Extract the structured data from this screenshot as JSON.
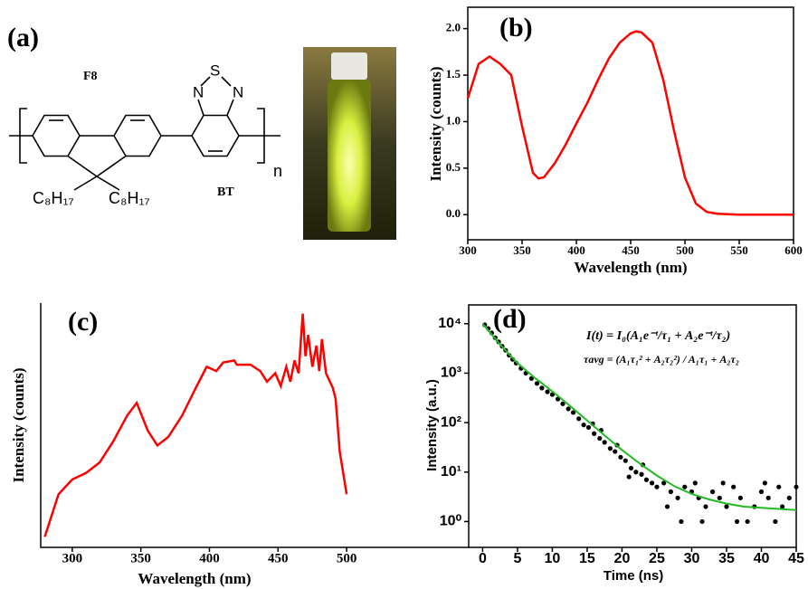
{
  "panel_a": {
    "label": "(a)",
    "f8": "F8",
    "bt": "BT",
    "s": "S",
    "n1": "N",
    "n2": "N",
    "repeat": "n",
    "chain_left": "C₈H₁₇",
    "chain_right": "C₈H₁₇"
  },
  "chart_data": [
    {
      "type": "line",
      "label": "(b)",
      "xlabel": "Wavelength (nm)",
      "ylabel": "Intensity (counts)",
      "color": "#ff0000",
      "x": [
        300,
        310,
        320,
        330,
        340,
        350,
        360,
        365,
        370,
        380,
        390,
        400,
        410,
        420,
        430,
        440,
        450,
        455,
        460,
        470,
        480,
        490,
        500,
        510,
        520,
        530,
        550,
        600
      ],
      "values": [
        1.25,
        1.62,
        1.7,
        1.62,
        1.5,
        0.95,
        0.45,
        0.39,
        0.4,
        0.55,
        0.75,
        0.98,
        1.2,
        1.45,
        1.68,
        1.85,
        1.95,
        1.97,
        1.96,
        1.85,
        1.45,
        0.9,
        0.4,
        0.12,
        0.03,
        0.01,
        0,
        0
      ],
      "xlim": [
        300,
        600
      ],
      "ylim": [
        -0.27,
        2.23
      ],
      "xticks": [
        300,
        350,
        400,
        450,
        500,
        550,
        600
      ],
      "yticks": [
        {
          "value": 0,
          "label": "0.0"
        },
        0.5,
        {
          "value": 1,
          "label": "1.0"
        },
        1.5,
        {
          "value": 2,
          "label": "2.0"
        }
      ]
    },
    {
      "type": "line",
      "label": "(c)",
      "xlabel": "Wavelength (nm)",
      "ylabel": "Intensity (counts)",
      "color": "#ff0000",
      "x": [
        280,
        290,
        300,
        310,
        320,
        330,
        340,
        347,
        355,
        362,
        370,
        380,
        390,
        398,
        405,
        410,
        418,
        420,
        430,
        437,
        442,
        448,
        452,
        456,
        459,
        462,
        465,
        468,
        470,
        472,
        475,
        478,
        480,
        482,
        485,
        490,
        492,
        495,
        500
      ],
      "values": [
        5,
        25,
        32,
        35,
        40,
        50,
        62,
        68,
        55,
        48,
        52,
        62,
        75,
        85,
        83,
        87,
        88,
        86,
        86,
        83,
        78,
        82,
        76,
        85,
        78,
        88,
        82,
        110,
        90,
        100,
        85,
        95,
        83,
        98,
        82,
        75,
        70,
        45,
        25
      ],
      "xlim": [
        277,
        589
      ],
      "ylim": [
        0,
        115
      ],
      "xticks": [
        300,
        350,
        400,
        450,
        500
      ]
    },
    {
      "type": "scatter",
      "label": "(d)",
      "xlabel": "Time (ns)",
      "ylabel": "Intensity (a.u.)",
      "log_y": true,
      "color": "#000000",
      "equation_1": "I(t) = I₀(A₁e⁻ᵗ/τ₁ + A₂e⁻ᵗ/τ₂)",
      "equation_2": "τavg = (A₁τ₁² + A₂τ₂²) / A₁τ₁ + A₂τ₂",
      "x": [
        0.3,
        0.8,
        1.3,
        1.8,
        2.3,
        2.8,
        3.3,
        3.8,
        4.3,
        4.8,
        5.5,
        6.2,
        7,
        7.8,
        8.5,
        9.3,
        10,
        10.8,
        11.5,
        12.3,
        13,
        13.8,
        14.5,
        15.2,
        16,
        16.8,
        17.5,
        18.3,
        19,
        19.8,
        20.5,
        21.3,
        22,
        22.8,
        23.5,
        24.3,
        25,
        26,
        27,
        28,
        29,
        30,
        31,
        32,
        33,
        34,
        35,
        36,
        37,
        38,
        39,
        40,
        41,
        42,
        43,
        44,
        45,
        28.5,
        31.5,
        34.5,
        26.5,
        30.5,
        36.5,
        40.5,
        42.5,
        19.3,
        21,
        23,
        15.8,
        17
      ],
      "values": [
        9500,
        8000,
        6500,
        5200,
        4300,
        3500,
        2900,
        2300,
        1900,
        1600,
        1250,
        1000,
        780,
        620,
        500,
        420,
        370,
        300,
        240,
        190,
        160,
        120,
        90,
        80,
        60,
        48,
        40,
        30,
        26,
        20,
        17,
        12,
        10,
        9,
        7,
        6,
        5,
        6,
        4,
        3,
        5,
        4,
        3,
        2,
        4,
        3,
        2,
        5,
        3,
        1,
        2,
        4,
        3,
        1,
        2,
        3,
        5,
        1,
        1,
        6,
        2,
        6,
        1,
        6,
        5,
        35,
        8,
        14,
        95,
        70
      ],
      "fit_color": "#22bb22",
      "fit_x": [
        0,
        2.5,
        5,
        7.5,
        10,
        12.5,
        15,
        17.5,
        20,
        22.5,
        25,
        27.5,
        30,
        32.5,
        35,
        37.5,
        40,
        42.5,
        45
      ],
      "fit_values": [
        10000,
        3800,
        1600,
        800,
        430,
        220,
        110,
        55,
        28,
        15,
        8.5,
        5.2,
        3.6,
        2.8,
        2.3,
        2.0,
        1.9,
        1.8,
        1.7
      ],
      "xlim": [
        -2,
        45
      ],
      "ylim": [
        0.3,
        24000
      ],
      "xticks": [
        0,
        5,
        10,
        15,
        20,
        25,
        30,
        35,
        40,
        45
      ],
      "yticks": [
        {
          "value": 1,
          "label": "10⁰"
        },
        {
          "value": 10,
          "label": "10¹"
        },
        {
          "value": 100,
          "label": "10²"
        },
        {
          "value": 1000,
          "label": "10³"
        },
        {
          "value": 10000,
          "label": "10⁴"
        }
      ]
    }
  ]
}
